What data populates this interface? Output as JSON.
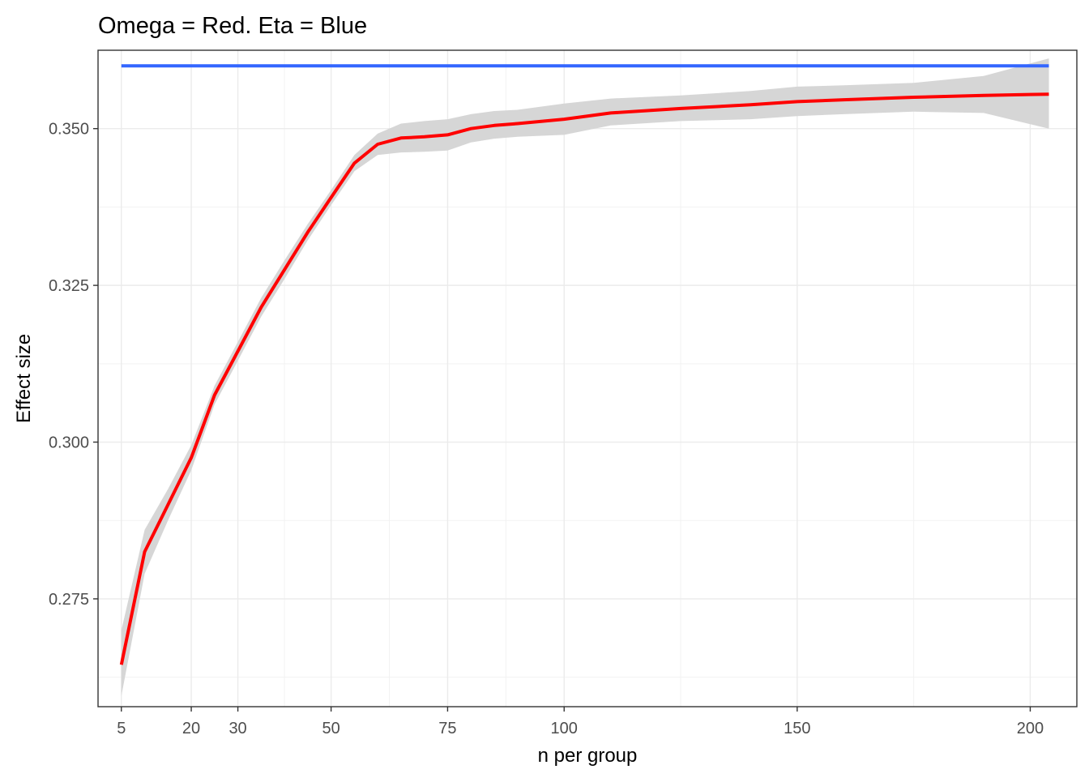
{
  "chart_data": {
    "type": "line",
    "title": "Omega = Red. Eta = Blue",
    "xlabel": "n per group",
    "ylabel": "Effect size",
    "xlim": [
      0,
      210
    ],
    "ylim": [
      0.2578,
      0.3625
    ],
    "x_ticks": [
      5,
      20,
      30,
      50,
      75,
      100,
      150,
      200
    ],
    "x_tick_labels": [
      "5",
      "20",
      "30",
      "50",
      "75",
      "100",
      "150",
      "200"
    ],
    "x_minor_grid": [
      40,
      62.5,
      87.5,
      125,
      175
    ],
    "y_ticks": [
      0.275,
      0.3,
      0.325,
      0.35
    ],
    "y_tick_labels": [
      "0.275",
      "0.300",
      "0.325",
      "0.350"
    ],
    "grid": true,
    "series": [
      {
        "name": "Eta",
        "color": "#3366ff",
        "x": [
          5,
          204
        ],
        "y": [
          0.36,
          0.36
        ]
      },
      {
        "name": "Omega",
        "color": "#ff0000",
        "x": [
          5,
          10,
          15,
          20,
          25,
          30,
          35,
          40,
          45,
          50,
          55,
          60,
          65,
          70,
          75,
          80,
          85,
          90,
          100,
          110,
          125,
          140,
          150,
          160,
          175,
          190,
          204
        ],
        "y": [
          0.2645,
          0.2825,
          0.29,
          0.2975,
          0.3075,
          0.3145,
          0.3215,
          0.3275,
          0.3335,
          0.339,
          0.3445,
          0.3475,
          0.3485,
          0.3487,
          0.349,
          0.35,
          0.3505,
          0.3508,
          0.3515,
          0.3525,
          0.3532,
          0.3538,
          0.3543,
          0.3546,
          0.355,
          0.3553,
          0.3555
        ],
        "ci_lower": [
          0.2595,
          0.279,
          0.2875,
          0.2955,
          0.306,
          0.313,
          0.32,
          0.326,
          0.3322,
          0.3378,
          0.3432,
          0.3458,
          0.3462,
          0.3463,
          0.3465,
          0.3478,
          0.3484,
          0.3487,
          0.349,
          0.3505,
          0.3512,
          0.3515,
          0.352,
          0.3523,
          0.3527,
          0.3525,
          0.35
        ],
        "ci_upper": [
          0.27,
          0.286,
          0.2925,
          0.2995,
          0.309,
          0.316,
          0.323,
          0.329,
          0.3348,
          0.3402,
          0.3458,
          0.3492,
          0.3508,
          0.3512,
          0.3515,
          0.3523,
          0.3528,
          0.353,
          0.354,
          0.3548,
          0.3553,
          0.356,
          0.3567,
          0.3569,
          0.3573,
          0.3584,
          0.3612
        ],
        "ci_color": "#d6d6d6"
      }
    ]
  }
}
